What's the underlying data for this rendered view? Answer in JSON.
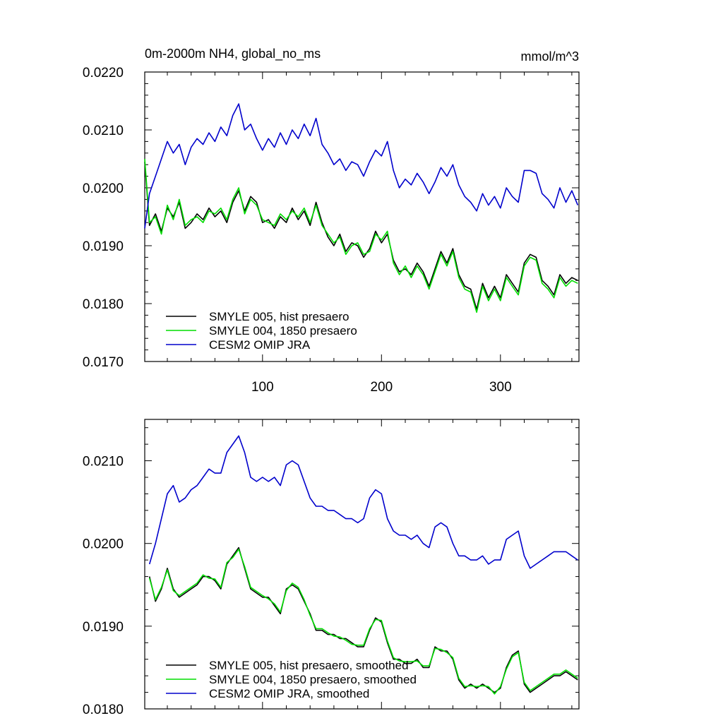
{
  "chart_data": [
    {
      "type": "line",
      "title": "0m-2000m NH4, global_no_ms",
      "units": "mmol/m^3",
      "xlim": [
        1,
        366
      ],
      "ylim": [
        0.017,
        0.022
      ],
      "xticks": [
        100,
        200,
        300
      ],
      "xtick_labels": [
        "100",
        "200",
        "300"
      ],
      "yticks": [
        0.017,
        0.018,
        0.019,
        0.02,
        0.021,
        0.022
      ],
      "ytick_labels": [
        "0.0170",
        "0.0180",
        "0.0190",
        "0.0200",
        "0.0210",
        "0.0220"
      ],
      "legend": "bottom-left",
      "series": [
        {
          "name": "SMYLE 005, hist presaero",
          "color": "#000000",
          "x": [
            1,
            5,
            10,
            15,
            20,
            25,
            30,
            35,
            40,
            45,
            50,
            55,
            60,
            65,
            70,
            75,
            80,
            85,
            90,
            95,
            100,
            105,
            110,
            115,
            120,
            125,
            130,
            135,
            140,
            145,
            150,
            155,
            160,
            165,
            170,
            175,
            180,
            185,
            190,
            195,
            200,
            205,
            210,
            215,
            220,
            225,
            230,
            235,
            240,
            245,
            250,
            255,
            260,
            265,
            270,
            275,
            280,
            285,
            290,
            295,
            300,
            305,
            310,
            315,
            320,
            325,
            330,
            335,
            340,
            345,
            350,
            355,
            360,
            365
          ],
          "y": [
            0.02045,
            0.01935,
            0.01955,
            0.01925,
            0.01965,
            0.0195,
            0.01975,
            0.0193,
            0.0194,
            0.01955,
            0.01945,
            0.01965,
            0.0195,
            0.0196,
            0.0194,
            0.01975,
            0.01995,
            0.0196,
            0.01985,
            0.01975,
            0.0194,
            0.01945,
            0.0193,
            0.0195,
            0.0194,
            0.01965,
            0.01945,
            0.0196,
            0.01935,
            0.01975,
            0.0194,
            0.01915,
            0.019,
            0.0192,
            0.0189,
            0.01905,
            0.019,
            0.0188,
            0.01895,
            0.01925,
            0.01905,
            0.0192,
            0.01875,
            0.01855,
            0.0186,
            0.0185,
            0.0187,
            0.01855,
            0.0183,
            0.0186,
            0.0189,
            0.0187,
            0.01895,
            0.0185,
            0.0183,
            0.01825,
            0.0179,
            0.01835,
            0.0181,
            0.0183,
            0.0181,
            0.0185,
            0.01835,
            0.0182,
            0.0187,
            0.01885,
            0.0188,
            0.0184,
            0.0183,
            0.01815,
            0.0185,
            0.01835,
            0.01845,
            0.0184
          ]
        },
        {
          "name": "SMYLE 004, 1850 presaero",
          "color": "#00dd00",
          "x": [
            1,
            5,
            10,
            15,
            20,
            25,
            30,
            35,
            40,
            45,
            50,
            55,
            60,
            65,
            70,
            75,
            80,
            85,
            90,
            95,
            100,
            105,
            110,
            115,
            120,
            125,
            130,
            135,
            140,
            145,
            150,
            155,
            160,
            165,
            170,
            175,
            180,
            185,
            190,
            195,
            200,
            205,
            210,
            215,
            220,
            225,
            230,
            235,
            240,
            245,
            250,
            255,
            260,
            265,
            270,
            275,
            280,
            285,
            290,
            295,
            300,
            305,
            310,
            315,
            320,
            325,
            330,
            335,
            340,
            345,
            350,
            355,
            360,
            365
          ],
          "y": [
            0.0205,
            0.0194,
            0.0195,
            0.0192,
            0.0197,
            0.01945,
            0.0198,
            0.01935,
            0.01945,
            0.0195,
            0.0194,
            0.0196,
            0.01955,
            0.01965,
            0.01945,
            0.0198,
            0.02,
            0.01955,
            0.0198,
            0.0197,
            0.01945,
            0.0194,
            0.01935,
            0.01955,
            0.01945,
            0.0196,
            0.0195,
            0.01965,
            0.0194,
            0.0197,
            0.01935,
            0.0192,
            0.01905,
            0.01915,
            0.01885,
            0.019,
            0.01905,
            0.01885,
            0.0189,
            0.0192,
            0.0191,
            0.01925,
            0.0187,
            0.0185,
            0.01865,
            0.01845,
            0.01865,
            0.0185,
            0.01825,
            0.01855,
            0.01885,
            0.01865,
            0.0189,
            0.01845,
            0.01825,
            0.0182,
            0.01785,
            0.0183,
            0.01805,
            0.01825,
            0.01805,
            0.01845,
            0.0183,
            0.01815,
            0.01865,
            0.0188,
            0.01875,
            0.01835,
            0.01825,
            0.0181,
            0.01845,
            0.0183,
            0.0184,
            0.01835
          ]
        },
        {
          "name": "CESM2 OMIP JRA",
          "color": "#0000cc",
          "x": [
            1,
            5,
            10,
            15,
            20,
            25,
            30,
            35,
            40,
            45,
            50,
            55,
            60,
            65,
            70,
            75,
            80,
            85,
            90,
            95,
            100,
            105,
            110,
            115,
            120,
            125,
            130,
            135,
            140,
            145,
            150,
            155,
            160,
            165,
            170,
            175,
            180,
            185,
            190,
            195,
            200,
            205,
            210,
            215,
            220,
            225,
            230,
            235,
            240,
            245,
            250,
            255,
            260,
            265,
            270,
            275,
            280,
            285,
            290,
            295,
            300,
            305,
            310,
            315,
            320,
            325,
            330,
            335,
            340,
            345,
            350,
            355,
            360,
            365
          ],
          "y": [
            0.0193,
            0.0199,
            0.0202,
            0.0205,
            0.0208,
            0.0206,
            0.02075,
            0.0204,
            0.0207,
            0.02085,
            0.02075,
            0.02095,
            0.0208,
            0.02105,
            0.0209,
            0.02125,
            0.02145,
            0.021,
            0.0211,
            0.02085,
            0.02065,
            0.02085,
            0.0207,
            0.02095,
            0.02075,
            0.021,
            0.02085,
            0.0211,
            0.0209,
            0.0212,
            0.02075,
            0.0206,
            0.0204,
            0.0205,
            0.0203,
            0.02045,
            0.0204,
            0.0202,
            0.02045,
            0.02065,
            0.02055,
            0.0208,
            0.0203,
            0.02,
            0.02015,
            0.02005,
            0.02025,
            0.0201,
            0.0199,
            0.0201,
            0.02035,
            0.0202,
            0.0204,
            0.02005,
            0.01985,
            0.01975,
            0.0196,
            0.0199,
            0.0197,
            0.01985,
            0.01965,
            0.02,
            0.01985,
            0.01975,
            0.0203,
            0.0203,
            0.02025,
            0.0199,
            0.0198,
            0.01965,
            0.02,
            0.01975,
            0.01995,
            0.0197
          ]
        }
      ]
    },
    {
      "type": "line",
      "xlim": [
        1,
        366
      ],
      "ylim": [
        0.018,
        0.0215
      ],
      "xticks": [
        100,
        200,
        300
      ],
      "yticks": [
        0.018,
        0.019,
        0.02,
        0.021
      ],
      "ytick_labels": [
        "0.0180",
        "0.0190",
        "0.0200",
        "0.0210"
      ],
      "legend": "bottom-left",
      "series": [
        {
          "name": "SMYLE 005, hist presaero, smoothed",
          "color": "#000000",
          "x": [
            5,
            10,
            15,
            20,
            25,
            30,
            35,
            40,
            45,
            50,
            55,
            60,
            65,
            70,
            75,
            80,
            85,
            90,
            95,
            100,
            105,
            110,
            115,
            120,
            125,
            130,
            135,
            140,
            145,
            150,
            155,
            160,
            165,
            170,
            175,
            180,
            185,
            190,
            195,
            200,
            205,
            210,
            215,
            220,
            225,
            230,
            235,
            240,
            245,
            250,
            255,
            260,
            265,
            270,
            275,
            280,
            285,
            290,
            295,
            300,
            305,
            310,
            315,
            320,
            325,
            330,
            335,
            340,
            345,
            350,
            355,
            360,
            365
          ],
          "y": [
            0.0196,
            0.0193,
            0.01945,
            0.0197,
            0.01945,
            0.01935,
            0.0194,
            0.01945,
            0.0195,
            0.0196,
            0.0196,
            0.01955,
            0.01945,
            0.01975,
            0.01985,
            0.01995,
            0.0197,
            0.01945,
            0.0194,
            0.01935,
            0.01935,
            0.01925,
            0.01915,
            0.01945,
            0.0195,
            0.01945,
            0.0193,
            0.01915,
            0.01895,
            0.01895,
            0.0189,
            0.0189,
            0.01885,
            0.01885,
            0.0188,
            0.01875,
            0.01875,
            0.01895,
            0.0191,
            0.01905,
            0.0188,
            0.0186,
            0.0186,
            0.01855,
            0.01855,
            0.0186,
            0.0185,
            0.0185,
            0.01875,
            0.0187,
            0.0187,
            0.0186,
            0.01835,
            0.01825,
            0.0183,
            0.01825,
            0.0183,
            0.01825,
            0.0182,
            0.01825,
            0.0185,
            0.01865,
            0.0187,
            0.0183,
            0.0182,
            0.01825,
            0.0183,
            0.01835,
            0.0184,
            0.0184,
            0.01845,
            0.0184,
            0.01835
          ]
        },
        {
          "name": "SMYLE 004, 1850 presaero, smoothed",
          "color": "#00dd00",
          "x": [
            5,
            10,
            15,
            20,
            25,
            30,
            35,
            40,
            45,
            50,
            55,
            60,
            65,
            70,
            75,
            80,
            85,
            90,
            95,
            100,
            105,
            110,
            115,
            120,
            125,
            130,
            135,
            140,
            145,
            150,
            155,
            160,
            165,
            170,
            175,
            180,
            185,
            190,
            195,
            200,
            205,
            210,
            215,
            220,
            225,
            230,
            235,
            240,
            245,
            250,
            255,
            260,
            265,
            270,
            275,
            280,
            285,
            290,
            295,
            300,
            305,
            310,
            315,
            320,
            325,
            330,
            335,
            340,
            345,
            350,
            355,
            360,
            365
          ],
          "y": [
            0.01958,
            0.01932,
            0.01947,
            0.01968,
            0.01943,
            0.01937,
            0.01942,
            0.01947,
            0.01952,
            0.01962,
            0.01958,
            0.01957,
            0.01947,
            0.01977,
            0.01983,
            0.01993,
            0.01972,
            0.01947,
            0.01942,
            0.01937,
            0.01933,
            0.01927,
            0.01917,
            0.01943,
            0.01952,
            0.01947,
            0.01932,
            0.01913,
            0.01897,
            0.01897,
            0.01892,
            0.01888,
            0.01887,
            0.01883,
            0.01878,
            0.01877,
            0.01877,
            0.01897,
            0.01908,
            0.01907,
            0.01882,
            0.01862,
            0.01858,
            0.01857,
            0.01857,
            0.01858,
            0.01852,
            0.01852,
            0.01873,
            0.01872,
            0.01868,
            0.01862,
            0.01837,
            0.01827,
            0.01828,
            0.01827,
            0.01828,
            0.01827,
            0.01818,
            0.01827,
            0.01848,
            0.01863,
            0.01868,
            0.01832,
            0.01822,
            0.01827,
            0.01832,
            0.01837,
            0.01842,
            0.01842,
            0.01847,
            0.01842,
            0.01837
          ]
        },
        {
          "name": "CESM2 OMIP JRA, smoothed",
          "color": "#0000cc",
          "x": [
            5,
            10,
            15,
            20,
            25,
            30,
            35,
            40,
            45,
            50,
            55,
            60,
            65,
            70,
            75,
            80,
            85,
            90,
            95,
            100,
            105,
            110,
            115,
            120,
            125,
            130,
            135,
            140,
            145,
            150,
            155,
            160,
            165,
            170,
            175,
            180,
            185,
            190,
            195,
            200,
            205,
            210,
            215,
            220,
            225,
            230,
            235,
            240,
            245,
            250,
            255,
            260,
            265,
            270,
            275,
            280,
            285,
            290,
            295,
            300,
            305,
            310,
            315,
            320,
            325,
            330,
            335,
            340,
            345,
            350,
            355,
            360,
            365
          ],
          "y": [
            0.01975,
            0.02,
            0.0203,
            0.0206,
            0.0207,
            0.0205,
            0.02055,
            0.02065,
            0.0207,
            0.0208,
            0.0209,
            0.02085,
            0.02085,
            0.0211,
            0.0212,
            0.0213,
            0.0211,
            0.0208,
            0.02075,
            0.0208,
            0.02075,
            0.0208,
            0.0207,
            0.02095,
            0.021,
            0.02095,
            0.02075,
            0.02055,
            0.02045,
            0.02045,
            0.0204,
            0.0204,
            0.02035,
            0.0203,
            0.0203,
            0.02025,
            0.0203,
            0.02055,
            0.02065,
            0.0206,
            0.0203,
            0.02015,
            0.0201,
            0.0201,
            0.02005,
            0.0201,
            0.02,
            0.01995,
            0.0202,
            0.02025,
            0.0202,
            0.02,
            0.01985,
            0.01985,
            0.0198,
            0.0198,
            0.01985,
            0.01975,
            0.0198,
            0.0198,
            0.02005,
            0.0201,
            0.02015,
            0.01985,
            0.0197,
            0.01975,
            0.0198,
            0.01985,
            0.0199,
            0.0199,
            0.0199,
            0.01985,
            0.0198
          ]
        }
      ]
    }
  ]
}
